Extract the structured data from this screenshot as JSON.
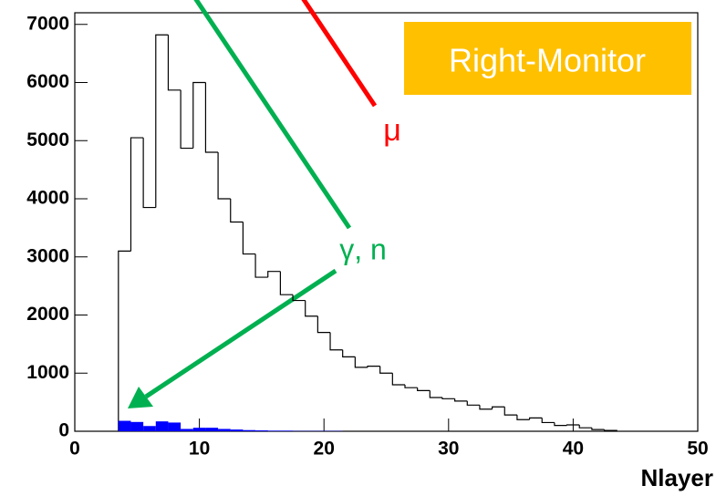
{
  "chart_data": {
    "type": "histogram",
    "x_label": "Nlayer",
    "bins": [
      3.5,
      4.5,
      5.5,
      6.5,
      7.5,
      8.5,
      9.5,
      10.5,
      11.5,
      12.5,
      13.5,
      14.5,
      15.5,
      16.5,
      17.5,
      18.5,
      19.5,
      20.5,
      21.5,
      22.5,
      23.5,
      24.5,
      25.5,
      26.5,
      27.5,
      28.5,
      29.5,
      30.5,
      31.5,
      32.5,
      33.5,
      34.5,
      35.5,
      36.5,
      37.5,
      38.5,
      39.5,
      40.5,
      41.5,
      42.5,
      43.5
    ],
    "series": [
      {
        "color": "#000000",
        "filled": false,
        "values": [
          3100,
          5050,
          3850,
          6820,
          5870,
          4870,
          6000,
          4800,
          4000,
          3600,
          3050,
          2650,
          2750,
          2350,
          2250,
          1980,
          1700,
          1400,
          1280,
          1100,
          1120,
          1000,
          800,
          750,
          700,
          580,
          560,
          520,
          450,
          380,
          420,
          280,
          200,
          230,
          150,
          100,
          110,
          60,
          30,
          15
        ]
      },
      {
        "color": "#0000ff",
        "filled": true,
        "values": [
          180,
          160,
          90,
          170,
          150,
          40,
          60,
          60,
          40,
          30,
          20,
          15,
          10,
          10,
          5,
          5,
          5,
          5,
          0,
          0,
          0,
          0,
          0,
          0,
          0,
          0,
          0,
          0,
          0,
          0,
          0,
          0,
          0,
          0,
          0,
          0,
          0,
          0,
          0,
          0
        ]
      }
    ],
    "xlim": [
      0,
      50
    ],
    "xticks": [
      0,
      10,
      20,
      30,
      40,
      50
    ],
    "ylim": [
      0,
      7200
    ],
    "yticks": [
      0,
      1000,
      2000,
      3000,
      4000,
      5000,
      6000,
      7000
    ],
    "annotations": [
      {
        "text": "Right-Monitor",
        "color": "#ffffff",
        "background": "#ffc000"
      },
      {
        "text": "μ",
        "color": "#ff0000"
      },
      {
        "text": "γ, n",
        "color": "#00b050"
      }
    ]
  }
}
